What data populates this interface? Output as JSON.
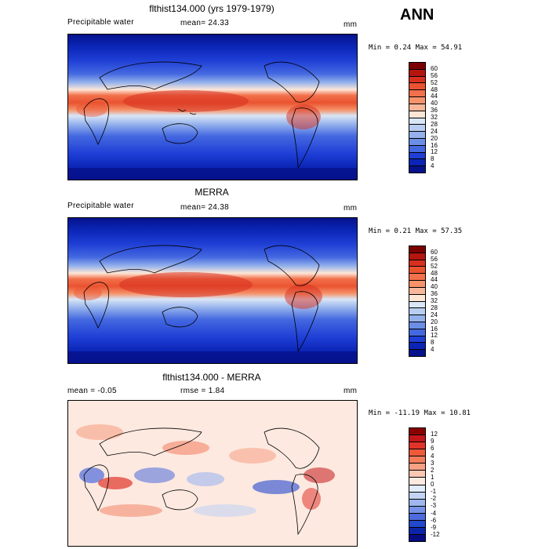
{
  "season": "ANN",
  "panels": [
    {
      "title": "flthist134.000 (yrs 1979-1979)",
      "left_label": "Precipitable water",
      "center_label": "mean=  24.33",
      "units": "mm",
      "minmax": "Min =   0.24  Max =  54.91",
      "colorbar": {
        "labels": [
          "60",
          "56",
          "52",
          "48",
          "44",
          "40",
          "36",
          "32",
          "28",
          "24",
          "20",
          "16",
          "12",
          "8",
          "4"
        ],
        "colors": [
          "#7b0000",
          "#b4160e",
          "#d7301f",
          "#ea5330",
          "#f2704b",
          "#f5936b",
          "#f7b79a",
          "#fde6d6",
          "#d9e6f6",
          "#b8cdf0",
          "#94b1ec",
          "#6c8fe6",
          "#4468e0",
          "#1f3fd6",
          "#0a25b5",
          "#06128c"
        ]
      },
      "map": {
        "kind": "pw",
        "mean": "24.33"
      }
    },
    {
      "title": "MERRA",
      "left_label": "Precipitable water",
      "center_label": "mean=  24.38",
      "units": "mm",
      "minmax": "Min =   0.21  Max =  57.35",
      "colorbar": {
        "labels": [
          "60",
          "56",
          "52",
          "48",
          "44",
          "40",
          "36",
          "32",
          "28",
          "24",
          "20",
          "16",
          "12",
          "8",
          "4"
        ],
        "colors": [
          "#7b0000",
          "#b4160e",
          "#d7301f",
          "#ea5330",
          "#f2704b",
          "#f5936b",
          "#f7b79a",
          "#fde6d6",
          "#d9e6f6",
          "#b8cdf0",
          "#94b1ec",
          "#6c8fe6",
          "#4468e0",
          "#1f3fd6",
          "#0a25b5",
          "#06128c"
        ]
      },
      "map": {
        "kind": "pw",
        "mean": "24.38"
      }
    },
    {
      "title": "flthist134.000 - MERRA",
      "left_label": "mean =   -0.05",
      "center_label": "rmse =    1.84",
      "units": "mm",
      "minmax": "Min = -11.19  Max =  10.81",
      "colorbar": {
        "labels": [
          "12",
          "9",
          "6",
          "4",
          "3",
          "2",
          "1",
          "0",
          "-1",
          "-2",
          "-3",
          "-4",
          "-6",
          "-9",
          "-12"
        ],
        "colors": [
          "#8a0000",
          "#c3171a",
          "#e0342a",
          "#ee5a3a",
          "#f27c5c",
          "#f6a184",
          "#fac7b3",
          "#fde9e0",
          "#e3ecfa",
          "#c3d3f4",
          "#9fb6ee",
          "#7893e6",
          "#4d6bdc",
          "#2347cd",
          "#0c25a8",
          "#050d80"
        ]
      },
      "map": {
        "kind": "diff",
        "mean": "-0.05"
      }
    }
  ]
}
